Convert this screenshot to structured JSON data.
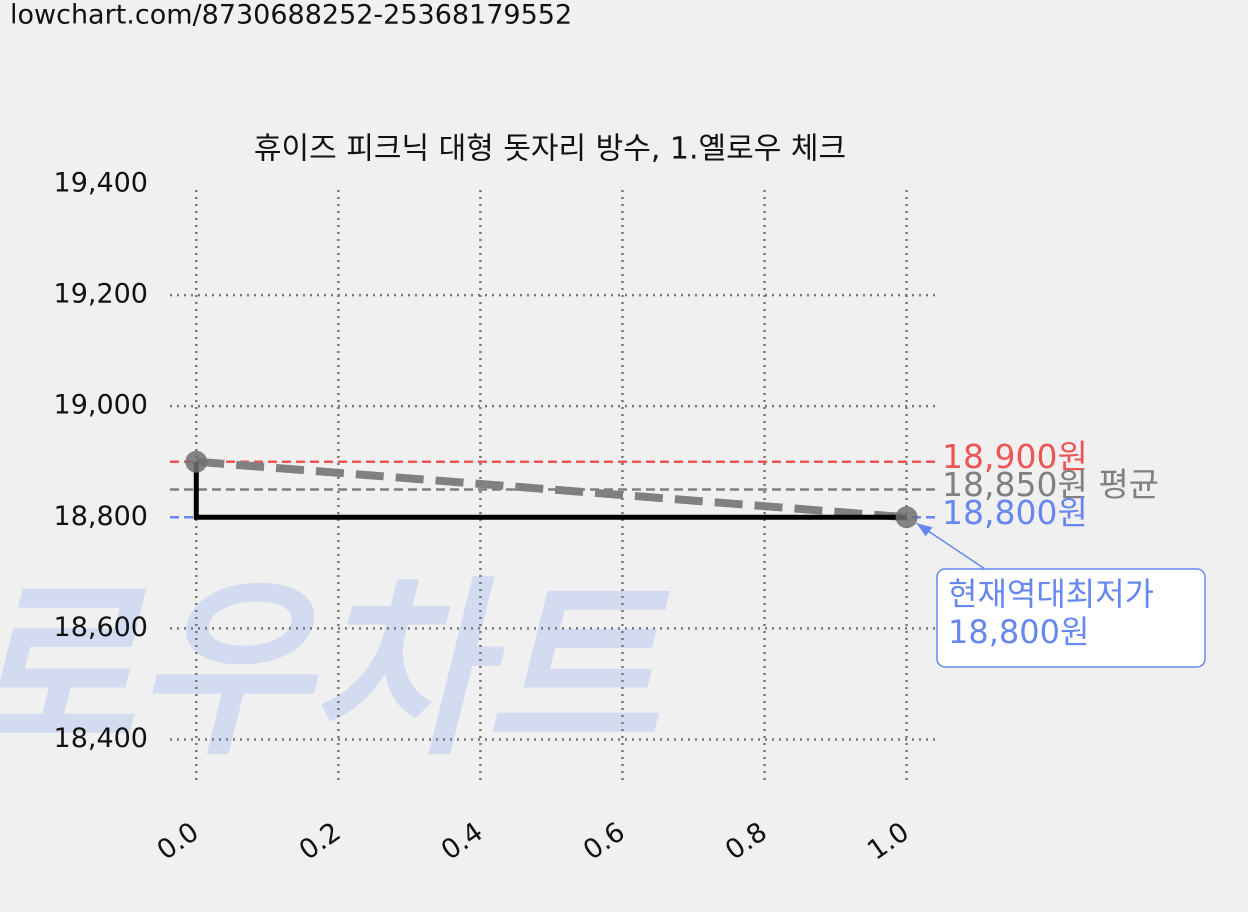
{
  "url": "lowchart.com/8730688252-25368179552",
  "watermark": "로우차트",
  "chart_data": {
    "type": "line",
    "title": "휴이즈 피크닉 대형 돗자리 방수, 1.옐로우 체크",
    "x": [
      0,
      1
    ],
    "series": [
      {
        "color": "#000000",
        "marker_color": "#707070",
        "trend_color": "#808080",
        "values": [
          18900,
          18800
        ]
      }
    ],
    "xlim": [
      -0.037,
      1.04
    ],
    "ylim": [
      18318,
      19400
    ],
    "xticks": [
      {
        "value": 0,
        "label": "0.0"
      },
      {
        "value": 0.2,
        "label": "0.2"
      },
      {
        "value": 0.4,
        "label": "0.4"
      },
      {
        "value": 0.6,
        "label": "0.6"
      },
      {
        "value": 0.8,
        "label": "0.8"
      },
      {
        "value": 1,
        "label": "1.0"
      }
    ],
    "yticks": [
      {
        "value": 18400,
        "label": "18,400"
      },
      {
        "value": 18600,
        "label": "18,600"
      },
      {
        "value": 18800,
        "label": "18,800"
      },
      {
        "value": 19000,
        "label": "19,000"
      },
      {
        "value": 19200,
        "label": "19,200"
      },
      {
        "value": 19400,
        "label": "19,400"
      }
    ],
    "grid": true,
    "reference_lines": [
      {
        "value": 18900,
        "label": "18,900원",
        "color": "#ee5555"
      },
      {
        "value": 18850,
        "label": "18,850원 평균",
        "color": "#808080"
      },
      {
        "value": 18800,
        "label": "18,800원",
        "color": "#6688ee"
      }
    ],
    "annotation": {
      "lines": [
        "현재역대최저가",
        "18,800원"
      ],
      "x": 1,
      "y": 18800,
      "color": "#6688ee"
    }
  }
}
